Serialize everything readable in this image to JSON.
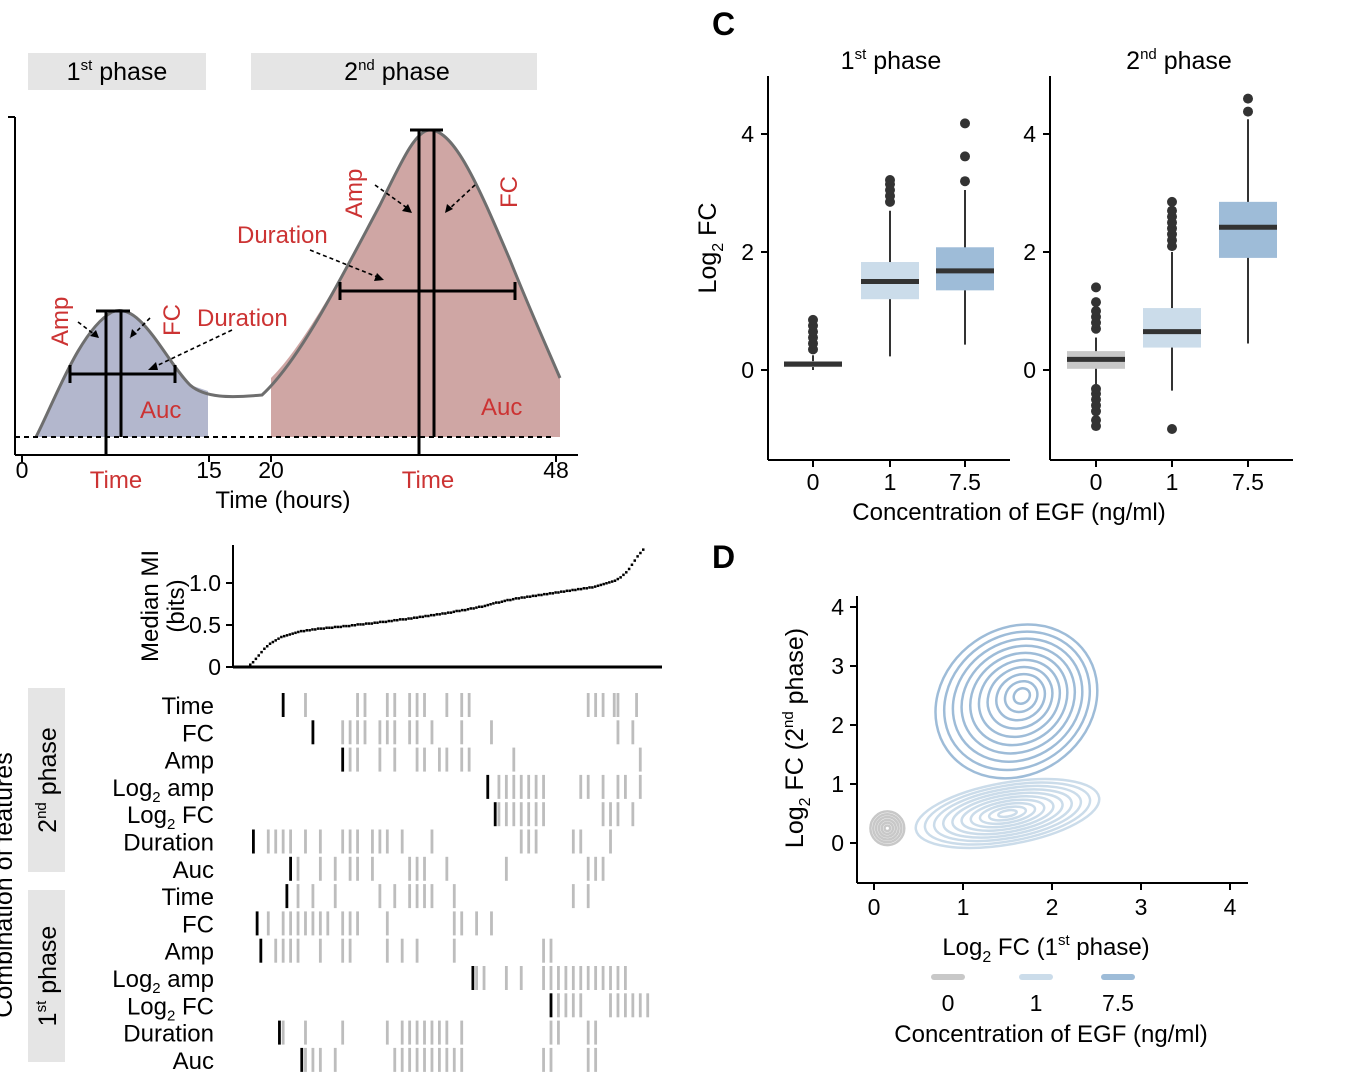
{
  "panel_labels": {
    "c": "C",
    "d": "D"
  },
  "colors": {
    "phase1_fill": "#b3b7cd",
    "phase2_fill": "#cfa6a4",
    "curve": "#6e6e6e",
    "red_label": "#cc3333",
    "phase_box": "#e5e5e5",
    "egf_0": "#c8c8c8",
    "egf_1": "#cbdcea",
    "egf_7_5": "#9ebcd8",
    "box_median": "#333333",
    "outlier": "#333333",
    "tile": "#bdbdbd",
    "tile_best": "#000000"
  },
  "chart_data": [
    {
      "id": "A",
      "type": "diagram",
      "phase_labels": [
        "1",
        "st",
        " phase",
        "2",
        "nd",
        " phase"
      ],
      "annotations": {
        "phase1": {
          "amp": "Amp",
          "fc": "FC",
          "duration": "Duration",
          "auc": "Auc",
          "time": "Time"
        },
        "phase2": {
          "amp": "Amp",
          "fc": "FC",
          "duration": "Duration",
          "auc": "Auc",
          "time": "Time"
        }
      },
      "x_ticks": [
        "0",
        "15",
        "20",
        "48"
      ],
      "xlabel": "Time (hours)"
    },
    {
      "id": "C",
      "type": "box",
      "facets": [
        {
          "title": [
            "1",
            "st",
            " phase"
          ],
          "boxes": [
            {
              "category": "0",
              "q1": 0.05,
              "median": 0.1,
              "q3": 0.15,
              "whisker_low": 0.0,
              "whisker_high": 0.25,
              "outliers": [
                0.35,
                0.45,
                0.55,
                0.65,
                0.75,
                0.85
              ]
            },
            {
              "category": "1",
              "q1": 1.2,
              "median": 1.5,
              "q3": 1.83,
              "whisker_low": 0.23,
              "whisker_high": 2.7,
              "outliers": [
                2.85,
                2.95,
                3.05,
                3.15,
                3.22
              ]
            },
            {
              "category": "7.5",
              "q1": 1.35,
              "median": 1.68,
              "q3": 2.08,
              "whisker_low": 0.43,
              "whisker_high": 3.05,
              "outliers": [
                3.2,
                3.62,
                4.18
              ]
            }
          ]
        },
        {
          "title": [
            "2",
            "nd",
            " phase"
          ],
          "boxes": [
            {
              "category": "0",
              "q1": 0.02,
              "median": 0.18,
              "q3": 0.32,
              "whisker_low": -0.25,
              "whisker_high": 0.55,
              "outliers": [
                -0.95,
                -0.85,
                -0.7,
                -0.6,
                -0.5,
                -0.4,
                -0.32,
                0.7,
                0.8,
                0.9,
                1.0,
                1.15,
                1.4
              ]
            },
            {
              "category": "1",
              "q1": 0.38,
              "median": 0.65,
              "q3": 1.05,
              "whisker_low": -0.35,
              "whisker_high": 2.0,
              "outliers": [
                -1.0,
                2.1,
                2.2,
                2.3,
                2.4,
                2.5,
                2.6,
                2.7,
                2.85
              ]
            },
            {
              "category": "7.5",
              "q1": 1.9,
              "median": 2.42,
              "q3": 2.85,
              "whisker_low": 0.45,
              "whisker_high": 4.25,
              "outliers": [
                4.38,
                4.6
              ]
            }
          ]
        }
      ],
      "categories": [
        "0",
        "1",
        "7.5"
      ],
      "y_ticks": [
        0,
        2,
        4
      ],
      "ylim": [
        -1.5,
        5
      ],
      "ylabel": [
        "Log",
        "2",
        "  FC"
      ],
      "xlabel": "Concentration of EGF (ng/ml)"
    },
    {
      "id": "B",
      "type": "scatter",
      "ylabel": [
        "Median MI",
        "(bits)"
      ],
      "y_ticks": [
        "0",
        "0.5",
        "1.0"
      ],
      "ylim": [
        0,
        1.45
      ],
      "n_points": 140,
      "mi_values": [
        0.03,
        0.06,
        0.1,
        0.14,
        0.18,
        0.22,
        0.25,
        0.28,
        0.3,
        0.32,
        0.34,
        0.36,
        0.37,
        0.38,
        0.39,
        0.4,
        0.41,
        0.42,
        0.43,
        0.43,
        0.44,
        0.44,
        0.45,
        0.45,
        0.46,
        0.46,
        0.46,
        0.47,
        0.47,
        0.47,
        0.48,
        0.48,
        0.48,
        0.49,
        0.49,
        0.49,
        0.5,
        0.5,
        0.51,
        0.51,
        0.51,
        0.52,
        0.52,
        0.52,
        0.53,
        0.53,
        0.54,
        0.54,
        0.54,
        0.55,
        0.55,
        0.56,
        0.56,
        0.57,
        0.57,
        0.57,
        0.58,
        0.58,
        0.59,
        0.59,
        0.6,
        0.6,
        0.61,
        0.61,
        0.62,
        0.62,
        0.63,
        0.63,
        0.64,
        0.64,
        0.65,
        0.65,
        0.66,
        0.67,
        0.67,
        0.68,
        0.68,
        0.69,
        0.7,
        0.7,
        0.71,
        0.72,
        0.72,
        0.73,
        0.74,
        0.75,
        0.76,
        0.77,
        0.77,
        0.78,
        0.79,
        0.8,
        0.8,
        0.81,
        0.82,
        0.82,
        0.83,
        0.83,
        0.84,
        0.84,
        0.85,
        0.85,
        0.86,
        0.86,
        0.87,
        0.87,
        0.88,
        0.88,
        0.89,
        0.89,
        0.9,
        0.9,
        0.91,
        0.91,
        0.92,
        0.92,
        0.93,
        0.93,
        0.94,
        0.94,
        0.95,
        0.95,
        0.96,
        0.97,
        0.98,
        0.99,
        1.0,
        1.01,
        1.02,
        1.03,
        1.05,
        1.07,
        1.1,
        1.13,
        1.17,
        1.22,
        1.27,
        1.32,
        1.36,
        1.4
      ],
      "side_label": "Combination of features",
      "group_labels": [
        [
          "2",
          "nd",
          " phase"
        ],
        [
          "1",
          "st",
          " phase"
        ]
      ],
      "rows": [
        {
          "label": "Time",
          "best": 8,
          "cols": [
            14,
            28,
            30,
            36,
            38,
            42,
            44,
            46,
            52,
            56,
            58,
            90,
            92,
            94,
            97,
            98,
            103
          ]
        },
        {
          "label": "FC",
          "best": 16,
          "cols": [
            24,
            26,
            28,
            30,
            34,
            36,
            38,
            42,
            44,
            48,
            56,
            64,
            98,
            102
          ]
        },
        {
          "label": "Amp",
          "best": 24,
          "cols": [
            26,
            28,
            34,
            38,
            44,
            46,
            50,
            52,
            56,
            58,
            70,
            104
          ]
        },
        {
          "label": [
            "Log",
            "2",
            " amp"
          ],
          "best": 63,
          "cols": [
            66,
            68,
            70,
            72,
            74,
            76,
            78,
            88,
            90,
            94,
            98,
            100,
            104
          ]
        },
        {
          "label": [
            "Log",
            "2",
            " FC"
          ],
          "best": 65,
          "cols": [
            66,
            68,
            70,
            72,
            74,
            76,
            78,
            94,
            96,
            98,
            102
          ]
        },
        {
          "label": "Duration",
          "best": 0,
          "cols": [
            4,
            6,
            8,
            10,
            14,
            18,
            24,
            26,
            28,
            32,
            34,
            36,
            40,
            48,
            72,
            74,
            76,
            86,
            88,
            96
          ]
        },
        {
          "label": "Auc",
          "best": 10,
          "cols": [
            12,
            18,
            22,
            26,
            28,
            32,
            42,
            44,
            46,
            52,
            68,
            90,
            92,
            94
          ]
        },
        {
          "label": "Time",
          "best": 9,
          "cols": [
            12,
            16,
            22,
            34,
            38,
            42,
            44,
            46,
            48,
            54,
            86,
            90
          ]
        },
        {
          "label": "FC",
          "best": 1,
          "cols": [
            4,
            8,
            10,
            12,
            14,
            16,
            18,
            20,
            24,
            26,
            28,
            36,
            54,
            56,
            60,
            64
          ]
        },
        {
          "label": "Amp",
          "best": 2,
          "cols": [
            6,
            8,
            10,
            12,
            18,
            24,
            26,
            36,
            40,
            44,
            54,
            78,
            80
          ]
        },
        {
          "label": [
            "Log",
            "2",
            " amp"
          ],
          "best": 59,
          "cols": [
            60,
            62,
            68,
            72,
            78,
            80,
            82,
            84,
            86,
            88,
            90,
            92,
            94,
            96,
            98,
            100
          ]
        },
        {
          "label": [
            "Log",
            "2",
            " FC"
          ],
          "best": 80,
          "cols": [
            82,
            84,
            86,
            88,
            96,
            98,
            100,
            102,
            104,
            106
          ]
        },
        {
          "label": "Duration",
          "best": 7,
          "cols": [
            8,
            14,
            24,
            36,
            40,
            42,
            44,
            46,
            48,
            50,
            52,
            56,
            80,
            82,
            90,
            92
          ]
        },
        {
          "label": "Auc",
          "best": 13,
          "cols": [
            14,
            16,
            18,
            22,
            38,
            40,
            42,
            44,
            46,
            48,
            50,
            52,
            54,
            56,
            78,
            80,
            90,
            92
          ]
        }
      ]
    },
    {
      "id": "D",
      "type": "contour",
      "xlabel": [
        "Log",
        "2",
        " FC (1",
        "st",
        " phase)"
      ],
      "ylabel": [
        "Log",
        "2",
        " FC (2",
        "nd",
        " phase)"
      ],
      "x_ticks": [
        0,
        1,
        2,
        3,
        4
      ],
      "y_ticks": [
        0,
        1,
        2,
        3,
        4
      ],
      "xlim": [
        -0.2,
        4.2
      ],
      "ylim": [
        -0.7,
        4.2
      ],
      "series": [
        {
          "name": "0",
          "center": [
            0.15,
            0.25
          ],
          "spread": [
            0.2,
            0.3
          ],
          "levels": 6
        },
        {
          "name": "1",
          "center": [
            1.5,
            0.5
          ],
          "spread": [
            1.1,
            0.55
          ],
          "levels": 10
        },
        {
          "name": "7.5",
          "center": [
            1.6,
            2.4
          ],
          "spread": [
            1.0,
            1.3
          ],
          "levels": 10
        }
      ],
      "legend_title": "Concentration of EGF (ng/ml)"
    }
  ]
}
